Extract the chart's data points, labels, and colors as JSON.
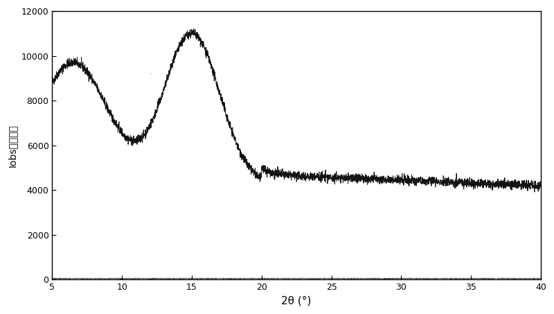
{
  "xlim": [
    5,
    40
  ],
  "ylim": [
    0,
    12000
  ],
  "xticks": [
    5,
    10,
    15,
    20,
    25,
    30,
    35,
    40
  ],
  "yticks": [
    0,
    2000,
    4000,
    6000,
    8000,
    10000,
    12000
  ],
  "xlabel": "2θ (°)",
  "ylabel": "Iobs（计数）",
  "line_color": "#000000",
  "background_color": "#ffffff",
  "noise_seed": 42,
  "noise_amplitude": 100,
  "flat_line_value": 50
}
